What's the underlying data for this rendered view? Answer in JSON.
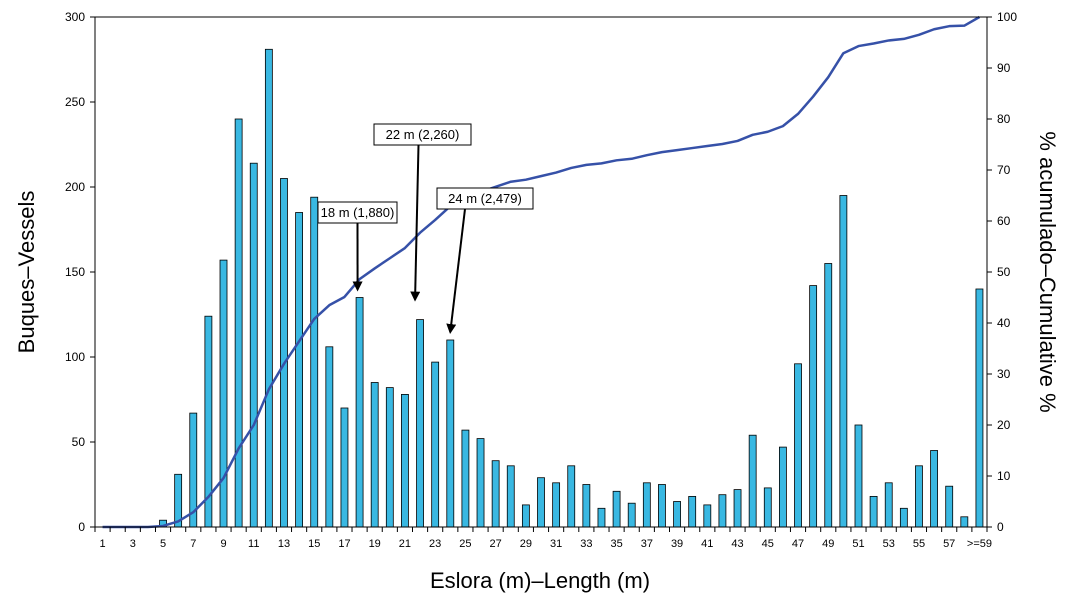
{
  "chart_data": {
    "type": "bar",
    "xlabel": "Eslora (m)–Length (m)",
    "ylabel": "Buques–Vessels",
    "y2label": "% acumulado–Cumulative %",
    "ylim": [
      0,
      300
    ],
    "y2lim": [
      0,
      100
    ],
    "yticks": [
      "0",
      "50",
      "100",
      "150",
      "200",
      "250",
      "300"
    ],
    "y2ticks": [
      "0",
      "10",
      "20",
      "30",
      "40",
      "50",
      "60",
      "70",
      "80",
      "90",
      "100"
    ],
    "grid": false,
    "bar_color": "#39B8E2",
    "line_color": "#3651A8",
    "categories": [
      "1",
      "2",
      "3",
      "4",
      "5",
      "6",
      "7",
      "8",
      "9",
      "10",
      "11",
      "12",
      "13",
      "14",
      "15",
      "16",
      "17",
      "18",
      "19",
      "20",
      "21",
      "22",
      "23",
      "24",
      "25",
      "26",
      "27",
      "28",
      "29",
      "30",
      "31",
      "32",
      "33",
      "34",
      "35",
      "36",
      "37",
      "38",
      "39",
      "40",
      "41",
      "42",
      "43",
      "44",
      "45",
      "46",
      "47",
      "48",
      "49",
      "50",
      "51",
      "52",
      "53",
      "54",
      "55",
      "56",
      "57",
      "58",
      ">=59"
    ],
    "x_tick_labels": [
      "1",
      "",
      "3",
      "",
      "5",
      "",
      "7",
      "",
      "9",
      "",
      "11",
      "",
      "13",
      "",
      "15",
      "",
      "17",
      "",
      "19",
      "",
      "21",
      "",
      "23",
      "",
      "25",
      "",
      "27",
      "",
      "29",
      "",
      "31",
      "",
      "33",
      "",
      "35",
      "",
      "37",
      "",
      "39",
      "",
      "41",
      "",
      "43",
      "",
      "45",
      "",
      "47",
      "",
      "49",
      "",
      "51",
      "",
      "53",
      "",
      "55",
      "",
      "57",
      "",
      ">=59"
    ],
    "series": [
      {
        "type": "bar",
        "axis": "left",
        "values": [
          0,
          0,
          0,
          0,
          4,
          31,
          67,
          124,
          157,
          240,
          214,
          281,
          205,
          185,
          194,
          106,
          70,
          135,
          85,
          82,
          78,
          122,
          97,
          110,
          57,
          52,
          39,
          36,
          13,
          29,
          26,
          36,
          25,
          11,
          21,
          14,
          26,
          25,
          15,
          18,
          13,
          19,
          22,
          54,
          23,
          47,
          96,
          142,
          155,
          195,
          60,
          18,
          26,
          11,
          36,
          45,
          24,
          6,
          140
        ]
      },
      {
        "type": "line",
        "axis": "right",
        "values": [
          0,
          0,
          0,
          0,
          0.2,
          1.1,
          2.9,
          5.9,
          9.6,
          15.4,
          20,
          27,
          32,
          36.4,
          40.8,
          43.5,
          45.1,
          48.6,
          50.7,
          52.7,
          54.7,
          57.7,
          60.2,
          62.9,
          64.4,
          65.7,
          66.7,
          67.7,
          68.1,
          68.8,
          69.5,
          70.4,
          71,
          71.3,
          71.9,
          72.2,
          72.9,
          73.5,
          73.9,
          74.3,
          74.7,
          75.1,
          75.7,
          76.9,
          77.5,
          78.6,
          81,
          84.4,
          88.2,
          92.9,
          94.3,
          94.8,
          95.4,
          95.7,
          96.5,
          97.6,
          98.2,
          98.3,
          100
        ]
      }
    ],
    "annotations": [
      {
        "text": "18 m (1,880)",
        "category": "18"
      },
      {
        "text": "22 m (2,260)",
        "category": "22"
      },
      {
        "text": "24 m (2,479)",
        "category": "24"
      }
    ]
  }
}
